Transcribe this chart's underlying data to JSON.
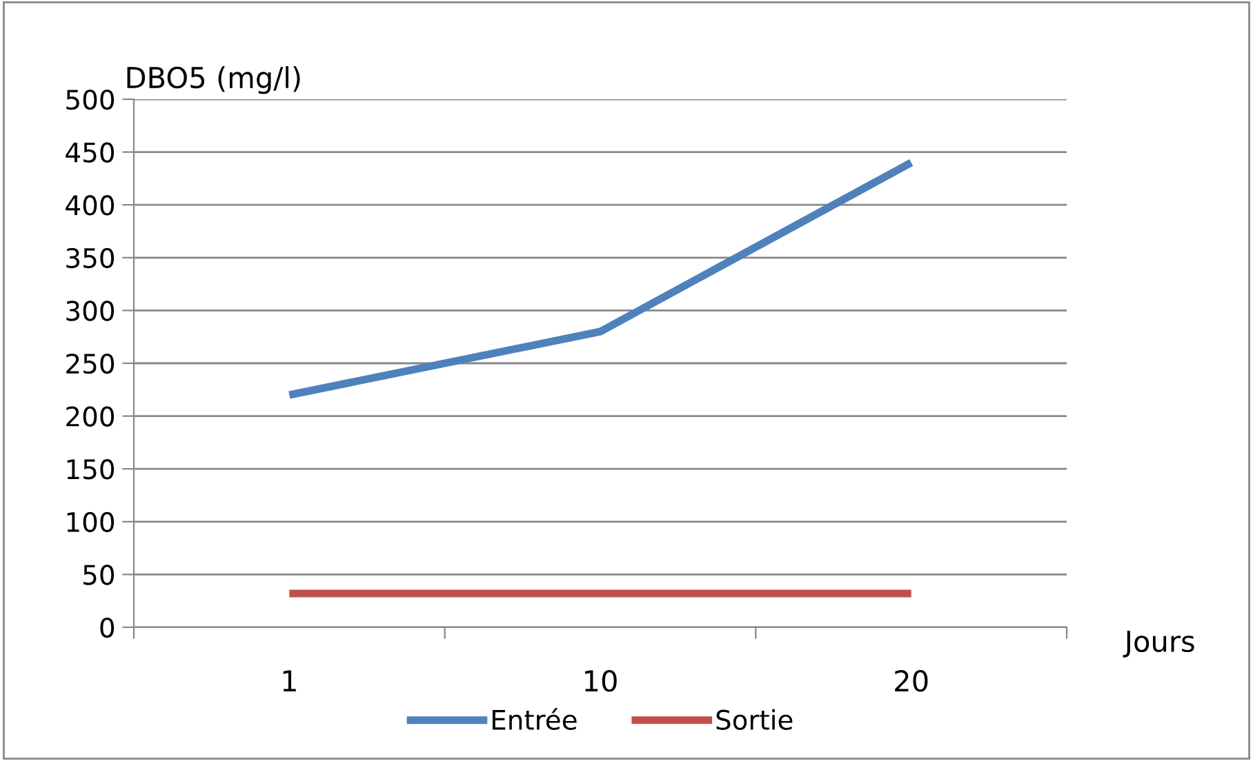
{
  "chart_data": {
    "type": "line",
    "ylabel": "DBO5 (mg/l)",
    "xlabel": "Jours",
    "categories": [
      "1",
      "10",
      "20"
    ],
    "series": [
      {
        "name": "Entrée",
        "color": "#4f81bd",
        "values": [
          220,
          280,
          440
        ]
      },
      {
        "name": "Sortie",
        "color": "#c0504d",
        "values": [
          32,
          32,
          32
        ]
      }
    ],
    "ylim": [
      0,
      500
    ],
    "yticks": [
      0,
      50,
      100,
      150,
      200,
      250,
      300,
      350,
      400,
      450,
      500
    ],
    "grid": "y",
    "legend": "bottom",
    "marker": "none",
    "line_style": "solid"
  }
}
